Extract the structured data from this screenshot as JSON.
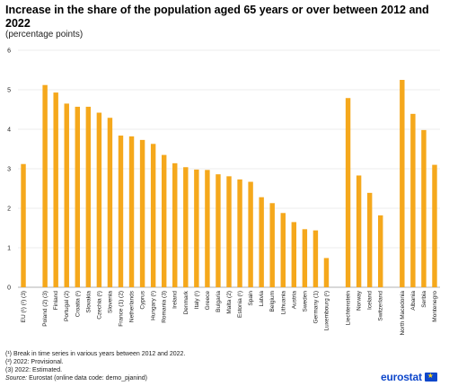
{
  "chart_data": {
    "type": "bar",
    "title": "Increase in the share of the population aged 65 years or over between 2012 and 2022",
    "subtitle": "(percentage points)",
    "xlabel": "",
    "ylabel": "",
    "ylim": [
      0,
      6
    ],
    "yticks": [
      "0",
      "1",
      "2",
      "3",
      "4",
      "5",
      "6"
    ],
    "grid": true,
    "bar_color": "#f5a81c",
    "groups": [
      {
        "categories": [
          "EU (¹) (²) (3)"
        ],
        "values": [
          3.12
        ]
      },
      {
        "categories": [
          "Poland (2) (3)",
          "Finland",
          "Portugal (2)",
          "Croatia (¹)",
          "Slovakia",
          "Czechia (¹)",
          "Slovenia",
          "France (1) (2)",
          "Netherlands",
          "Cyprus",
          "Hungary (¹)",
          "Romania (3)",
          "Ireland",
          "Denmark",
          "Italy (¹)",
          "Greece",
          "Bulgaria",
          "Malta (2)",
          "Estonia (¹)",
          "Spain",
          "Latvia",
          "Belgium",
          "Lithuania",
          "Austria",
          "Sweden",
          "Germany (1)",
          "Luxembourg (¹)"
        ],
        "values": [
          5.12,
          4.93,
          4.65,
          4.57,
          4.57,
          4.42,
          4.29,
          3.84,
          3.82,
          3.73,
          3.63,
          3.35,
          3.14,
          3.04,
          2.98,
          2.97,
          2.86,
          2.81,
          2.73,
          2.67,
          2.28,
          2.13,
          1.88,
          1.65,
          1.47,
          1.44,
          0.74
        ]
      },
      {
        "categories": [
          "Liechtenstein",
          "Norway",
          "Iceland",
          "Switzerland"
        ],
        "values": [
          4.79,
          2.83,
          2.39,
          1.82
        ]
      },
      {
        "categories": [
          "North Macedonia",
          "Albania",
          "Serbia",
          "Montenegro"
        ],
        "values": [
          5.25,
          4.39,
          3.98,
          3.1
        ]
      }
    ]
  },
  "footnotes": {
    "note1": "(¹) Break in time series in various years between 2012 and 2022.",
    "note2": "(²) 2022: Provisional.",
    "note3": "(3) 2022: Estimated.",
    "source_label": "Source:",
    "source_text": " Eurostat (online data code: demo_pjanind)"
  },
  "logo": {
    "text": "eurostat",
    "icon": "eu-flag-icon",
    "brand_color": "#0e47cb"
  }
}
